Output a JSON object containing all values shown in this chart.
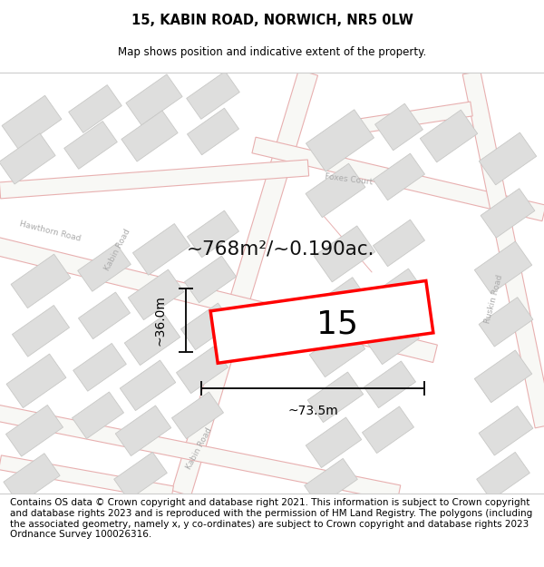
{
  "title": "15, KABIN ROAD, NORWICH, NR5 0LW",
  "subtitle": "Map shows position and indicative extent of the property.",
  "area_label": "~768m²/~0.190ac.",
  "plot_number": "15",
  "width_label": "~73.5m",
  "height_label": "~36.0m",
  "map_bg": "#f8f8f5",
  "road_outline_color": "#e8b0b0",
  "road_fill_color": "#f5f5f5",
  "building_fill": "#dededd",
  "building_edge": "#c8c8c6",
  "highlight_color": "#ff0000",
  "dim_line_color": "#111111",
  "road_label_color": "#aaaaaa",
  "footer_text": "Contains OS data © Crown copyright and database right 2021. This information is subject to Crown copyright and database rights 2023 and is reproduced with the permission of HM Land Registry. The polygons (including the associated geometry, namely x, y co-ordinates) are subject to Crown copyright and database rights 2023 Ordnance Survey 100026316.",
  "title_fontsize": 10.5,
  "subtitle_fontsize": 8.5,
  "footer_fontsize": 7.5
}
